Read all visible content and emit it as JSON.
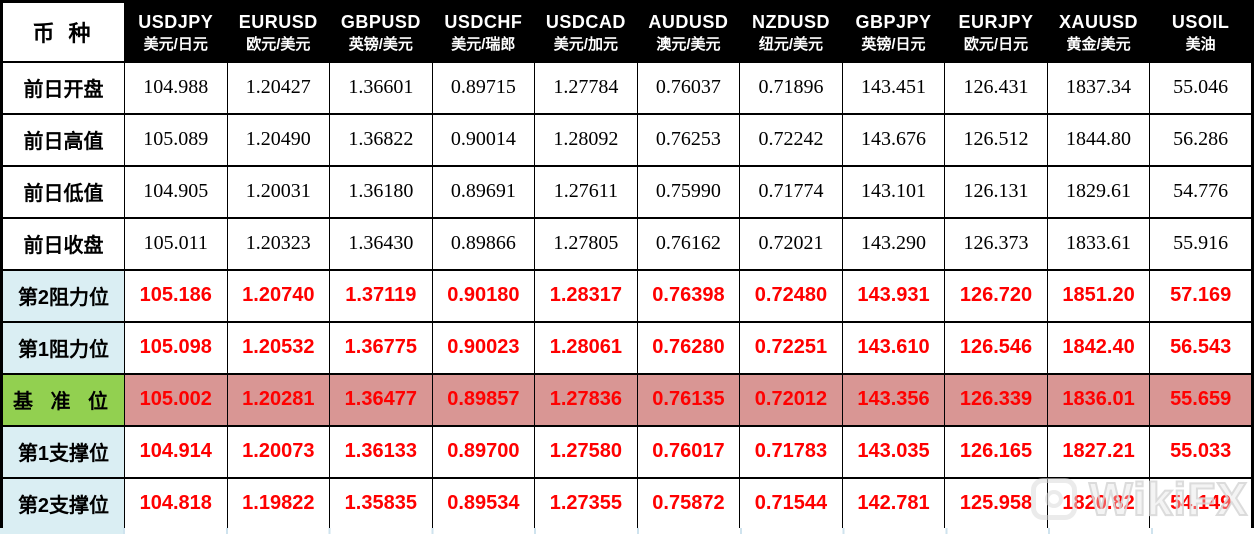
{
  "table": {
    "corner_label": "币 种",
    "columns": [
      {
        "symbol": "USDJPY",
        "name_cn": "美元/日元"
      },
      {
        "symbol": "EURUSD",
        "name_cn": "欧元/美元"
      },
      {
        "symbol": "GBPUSD",
        "name_cn": "英镑/美元"
      },
      {
        "symbol": "USDCHF",
        "name_cn": "美元/瑞郎"
      },
      {
        "symbol": "USDCAD",
        "name_cn": "美元/加元"
      },
      {
        "symbol": "AUDUSD",
        "name_cn": "澳元/美元"
      },
      {
        "symbol": "NZDUSD",
        "name_cn": "纽元/美元"
      },
      {
        "symbol": "GBPJPY",
        "name_cn": "英镑/日元"
      },
      {
        "symbol": "EURJPY",
        "name_cn": "欧元/日元"
      },
      {
        "symbol": "XAUUSD",
        "name_cn": "黄金/美元"
      },
      {
        "symbol": "USOIL",
        "name_cn": "美油"
      }
    ],
    "rows": [
      {
        "label": "前日开盘",
        "kind": "prev",
        "values": [
          "104.988",
          "1.20427",
          "1.36601",
          "0.89715",
          "1.27784",
          "0.76037",
          "0.71896",
          "143.451",
          "126.431",
          "1837.34",
          "55.046"
        ]
      },
      {
        "label": "前日高值",
        "kind": "prev",
        "values": [
          "105.089",
          "1.20490",
          "1.36822",
          "0.90014",
          "1.28092",
          "0.76253",
          "0.72242",
          "143.676",
          "126.512",
          "1844.80",
          "56.286"
        ]
      },
      {
        "label": "前日低值",
        "kind": "prev",
        "values": [
          "104.905",
          "1.20031",
          "1.36180",
          "0.89691",
          "1.27611",
          "0.75990",
          "0.71774",
          "143.101",
          "126.131",
          "1829.61",
          "54.776"
        ]
      },
      {
        "label": "前日收盘",
        "kind": "prev",
        "values": [
          "105.011",
          "1.20323",
          "1.36430",
          "0.89866",
          "1.27805",
          "0.76162",
          "0.72021",
          "143.290",
          "126.373",
          "1833.61",
          "55.916"
        ]
      },
      {
        "label": "第2阻力位",
        "kind": "level",
        "values": [
          "105.186",
          "1.20740",
          "1.37119",
          "0.90180",
          "1.28317",
          "0.76398",
          "0.72480",
          "143.931",
          "126.720",
          "1851.20",
          "57.169"
        ]
      },
      {
        "label": "第1阻力位",
        "kind": "level",
        "values": [
          "105.098",
          "1.20532",
          "1.36775",
          "0.90023",
          "1.28061",
          "0.76280",
          "0.72251",
          "143.610",
          "126.546",
          "1842.40",
          "56.543"
        ]
      },
      {
        "label": "基 准 位",
        "kind": "pivot",
        "values": [
          "105.002",
          "1.20281",
          "1.36477",
          "0.89857",
          "1.27836",
          "0.76135",
          "0.72012",
          "143.356",
          "126.339",
          "1836.01",
          "55.659"
        ]
      },
      {
        "label": "第1支撑位",
        "kind": "level",
        "values": [
          "104.914",
          "1.20073",
          "1.36133",
          "0.89700",
          "1.27580",
          "0.76017",
          "0.71783",
          "143.035",
          "126.165",
          "1827.21",
          "55.033"
        ]
      },
      {
        "label": "第2支撑位",
        "kind": "level",
        "values": [
          "104.818",
          "1.19822",
          "1.35835",
          "0.89534",
          "1.27355",
          "0.75872",
          "0.71544",
          "142.781",
          "125.958",
          "1820.82",
          "54.149"
        ]
      }
    ]
  },
  "watermark": {
    "text": "WikiFX"
  },
  "colors": {
    "header_bg": "#000000",
    "header_text": "#ffffff",
    "level_label_bg": "#daeef3",
    "pivot_label_bg": "#92d050",
    "pivot_row_bg": "#d99694",
    "highlight_text": "#ff0000"
  }
}
